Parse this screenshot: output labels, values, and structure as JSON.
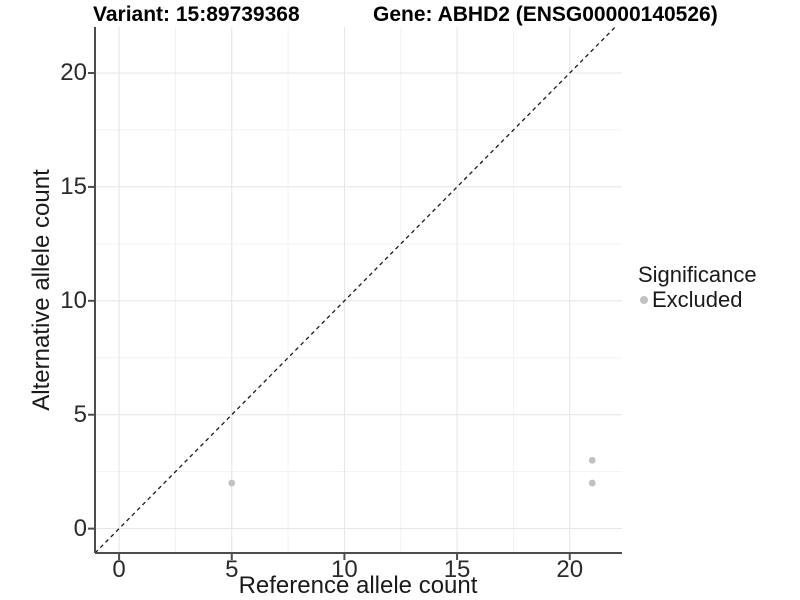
{
  "chart_data": {
    "type": "scatter",
    "titles": {
      "variant": "Variant: 15:89739368",
      "gene": "Gene: ABHD2 (ENSG00000140526)"
    },
    "xlabel": "Reference allele count",
    "ylabel": "Alternative allele count",
    "xlim": [
      -1.07,
      22.32
    ],
    "ylim": [
      -1.07,
      22.02
    ],
    "x_ticks": [
      0,
      5,
      10,
      15,
      20
    ],
    "y_ticks": [
      0,
      5,
      10,
      15,
      20
    ],
    "x_minor_gridlines": [
      2.5,
      7.5,
      12.5,
      17.5
    ],
    "y_minor_gridlines": [
      2.5,
      7.5,
      12.5,
      17.5
    ],
    "grid": true,
    "identity_line": {
      "type": "dashed",
      "color": "#1a1a1a",
      "from": -1.07,
      "to": 22.02,
      "description": "y = x reference line"
    },
    "series": [
      {
        "name": "Excluded",
        "color": "#c1c1c1",
        "points": [
          {
            "x": 5,
            "y": 2
          },
          {
            "x": 21,
            "y": 3
          },
          {
            "x": 21,
            "y": 2
          }
        ]
      }
    ],
    "legend": {
      "title": "Significance",
      "position": "right",
      "entries": [
        {
          "label": "Excluded",
          "color": "#c1c1c1"
        }
      ]
    },
    "style": {
      "axis_line_color": "#4d4d4d",
      "major_grid_color": "#e4e4e4",
      "minor_grid_color": "#f2f2f2",
      "point_radius_px": 3.4
    }
  }
}
